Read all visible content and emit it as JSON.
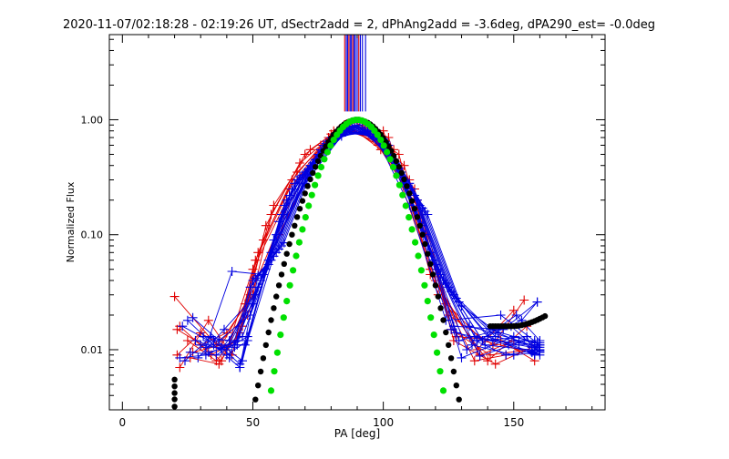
{
  "chart_data": {
    "type": "line",
    "title": "2020-11-07/02:18:28 - 02:19:26 UT, dSectr2add = 2, dPhAng2add = -3.6deg, dPA290_est= -0.0deg",
    "xlabel": "PA [deg]",
    "ylabel": "Normalized Flux",
    "xlim": [
      -5,
      185
    ],
    "ylim": [
      0.003,
      5.5
    ],
    "yscale": "log",
    "xticks": [
      0,
      50,
      100,
      150
    ],
    "xtick_labels": [
      "0",
      "50",
      "100",
      "150"
    ],
    "yticks": [
      0.01,
      0.1,
      1.0
    ],
    "ytick_labels": [
      "0.01",
      "0.10",
      "1.00"
    ],
    "colors": {
      "red": "#e00000",
      "blue": "#0000e0",
      "black": "#000000",
      "green": "#00e000"
    },
    "vertical_markers": {
      "color_sequence": [
        "red",
        "blue",
        "blue",
        "red",
        "blue",
        "blue",
        "red",
        "blue",
        "blue",
        "blue",
        "red",
        "blue",
        "blue",
        "blue"
      ],
      "x": [
        85.2,
        85.8,
        86.3,
        86.8,
        87.3,
        87.8,
        88.3,
        88.8,
        89.3,
        90.0,
        90.6,
        91.2,
        92.0,
        93.2
      ],
      "y_from": 1.18
    },
    "series": [
      {
        "name": "red-1",
        "color": "red",
        "x": [
          20,
          36,
          48,
          60,
          75,
          88,
          100,
          118,
          135,
          147
        ],
        "y": [
          0.029,
          0.011,
          0.02,
          0.1,
          0.5,
          0.88,
          0.8,
          0.05,
          0.008,
          0.009
        ]
      },
      {
        "name": "red-2",
        "color": "red",
        "x": [
          21,
          28,
          38,
          49,
          62,
          76,
          89,
          102,
          120,
          137,
          150
        ],
        "y": [
          0.015,
          0.012,
          0.008,
          0.03,
          0.15,
          0.6,
          0.95,
          0.7,
          0.04,
          0.009,
          0.012
        ]
      },
      {
        "name": "red-3",
        "color": "red",
        "x": [
          21,
          30,
          40,
          50,
          63,
          79,
          91,
          104,
          121,
          138,
          152
        ],
        "y": [
          0.009,
          0.014,
          0.01,
          0.05,
          0.2,
          0.7,
          0.9,
          0.55,
          0.03,
          0.012,
          0.01
        ]
      },
      {
        "name": "red-4",
        "color": "red",
        "x": [
          22,
          33,
          42,
          51,
          64,
          80,
          92,
          106,
          118,
          136,
          150
        ],
        "y": [
          0.007,
          0.018,
          0.009,
          0.06,
          0.25,
          0.75,
          0.85,
          0.5,
          0.045,
          0.01,
          0.022
        ]
      },
      {
        "name": "red-5",
        "color": "red",
        "x": [
          22,
          34,
          44,
          52,
          65,
          81,
          94,
          108,
          124,
          140,
          155
        ],
        "y": [
          0.016,
          0.009,
          0.012,
          0.07,
          0.3,
          0.8,
          0.78,
          0.4,
          0.025,
          0.008,
          0.016
        ]
      },
      {
        "name": "red-6",
        "color": "red",
        "x": [
          25,
          36,
          45,
          54,
          67,
          83,
          96,
          110,
          125,
          142,
          154
        ],
        "y": [
          0.012,
          0.008,
          0.014,
          0.09,
          0.35,
          0.82,
          0.7,
          0.3,
          0.02,
          0.011,
          0.027
        ]
      },
      {
        "name": "red-7",
        "color": "red",
        "x": [
          26,
          37,
          46,
          55,
          68,
          84,
          97,
          112,
          126,
          141,
          156
        ],
        "y": [
          0.0085,
          0.0075,
          0.016,
          0.12,
          0.42,
          0.85,
          0.65,
          0.25,
          0.015,
          0.009,
          0.01
        ]
      },
      {
        "name": "red-8",
        "color": "red",
        "x": [
          27,
          38,
          47,
          57,
          70,
          85,
          98,
          113,
          127,
          143,
          157
        ],
        "y": [
          0.0095,
          0.011,
          0.025,
          0.15,
          0.5,
          0.9,
          0.6,
          0.2,
          0.012,
          0.0075,
          0.0105
        ]
      },
      {
        "name": "red-9",
        "color": "red",
        "x": [
          30,
          40,
          50,
          58,
          72,
          86,
          99,
          115,
          128,
          145,
          158
        ],
        "y": [
          0.011,
          0.014,
          0.03,
          0.18,
          0.55,
          0.92,
          0.55,
          0.15,
          0.013,
          0.012,
          0.008
        ]
      },
      {
        "name": "blue-1",
        "color": "blue",
        "x": [
          22,
          32,
          44,
          56,
          70,
          84,
          96,
          110,
          124,
          145,
          160
        ],
        "y": [
          0.0085,
          0.009,
          0.012,
          0.06,
          0.28,
          0.72,
          0.8,
          0.18,
          0.018,
          0.02,
          0.011
        ]
      },
      {
        "name": "blue-2",
        "color": "blue",
        "x": [
          23,
          33,
          45,
          57,
          71,
          85,
          98,
          112,
          126,
          147,
          160
        ],
        "y": [
          0.016,
          0.012,
          0.007,
          0.07,
          0.32,
          0.78,
          0.75,
          0.16,
          0.015,
          0.009,
          0.01
        ]
      },
      {
        "name": "blue-3",
        "color": "blue",
        "x": [
          24,
          34,
          46,
          58,
          72,
          86,
          99,
          114,
          127,
          146,
          159
        ],
        "y": [
          0.008,
          0.013,
          0.008,
          0.09,
          0.35,
          0.8,
          0.7,
          0.14,
          0.016,
          0.015,
          0.026
        ]
      },
      {
        "name": "blue-4",
        "color": "blue",
        "x": [
          25,
          35,
          47,
          59,
          73,
          87,
          100,
          115,
          128,
          148,
          158
        ],
        "y": [
          0.018,
          0.011,
          0.011,
          0.1,
          0.4,
          0.82,
          0.68,
          0.12,
          0.014,
          0.011,
          0.009
        ]
      },
      {
        "name": "blue-5",
        "color": "blue",
        "x": [
          26,
          36,
          48,
          60,
          74,
          88,
          101,
          116,
          129,
          149,
          160
        ],
        "y": [
          0.0095,
          0.009,
          0.013,
          0.13,
          0.45,
          0.85,
          0.62,
          0.1,
          0.012,
          0.016,
          0.0095
        ]
      },
      {
        "name": "blue-6",
        "color": "blue",
        "x": [
          27,
          37,
          49,
          61,
          75,
          89,
          103,
          117,
          130,
          150,
          159
        ],
        "y": [
          0.019,
          0.012,
          0.02,
          0.15,
          0.5,
          0.88,
          0.5,
          0.08,
          0.0085,
          0.013,
          0.0115
        ]
      },
      {
        "name": "blue-7",
        "color": "blue",
        "x": [
          28,
          38,
          50,
          62,
          76,
          90,
          104,
          118,
          132,
          151,
          160
        ],
        "y": [
          0.012,
          0.01,
          0.025,
          0.18,
          0.55,
          0.9,
          0.45,
          0.07,
          0.01,
          0.02,
          0.012
        ]
      },
      {
        "name": "blue-8",
        "color": "blue",
        "x": [
          29,
          39,
          51,
          63,
          77,
          91,
          105,
          119,
          133,
          152,
          159
        ],
        "y": [
          0.0085,
          0.015,
          0.03,
          0.2,
          0.6,
          0.86,
          0.42,
          0.06,
          0.016,
          0.012,
          0.0105
        ]
      },
      {
        "name": "blue-9",
        "color": "blue",
        "x": [
          30,
          40,
          52,
          64,
          78,
          92,
          106,
          120,
          134,
          150,
          160
        ],
        "y": [
          0.011,
          0.01,
          0.035,
          0.22,
          0.62,
          0.84,
          0.38,
          0.055,
          0.011,
          0.009,
          0.0095
        ]
      },
      {
        "name": "blue-10",
        "color": "blue",
        "x": [
          31,
          41,
          53,
          65,
          79,
          93,
          107,
          121,
          135,
          152,
          157
        ],
        "y": [
          0.013,
          0.012,
          0.04,
          0.25,
          0.65,
          0.82,
          0.35,
          0.05,
          0.013,
          0.011,
          0.0105
        ]
      },
      {
        "name": "blue-11",
        "color": "blue",
        "x": [
          32,
          42,
          54,
          66,
          80,
          94,
          108,
          122,
          136,
          153,
          159
        ],
        "y": [
          0.0105,
          0.048,
          0.045,
          0.28,
          0.7,
          0.8,
          0.3,
          0.045,
          0.012,
          0.018,
          0.026
        ]
      },
      {
        "name": "blue-12",
        "color": "blue",
        "x": [
          33,
          43,
          55,
          67,
          81,
          95,
          110,
          123,
          137,
          154,
          160
        ],
        "y": [
          0.0095,
          0.011,
          0.05,
          0.3,
          0.72,
          0.78,
          0.28,
          0.04,
          0.0088,
          0.012,
          0.0115
        ]
      },
      {
        "name": "blue-13",
        "color": "blue",
        "x": [
          35,
          45,
          56,
          68,
          82,
          96,
          111,
          124,
          138,
          155,
          158
        ],
        "y": [
          0.012,
          0.0075,
          0.055,
          0.32,
          0.75,
          0.75,
          0.25,
          0.038,
          0.012,
          0.013,
          0.0092
        ]
      },
      {
        "name": "blue-14",
        "color": "blue",
        "x": [
          38,
          46,
          57,
          69,
          83,
          97,
          112,
          125,
          139,
          156,
          160
        ],
        "y": [
          0.0105,
          0.013,
          0.06,
          0.33,
          0.78,
          0.72,
          0.22,
          0.035,
          0.011,
          0.01,
          0.009
        ]
      },
      {
        "name": "blue-15",
        "color": "blue",
        "x": [
          40,
          48,
          58,
          70,
          84,
          98,
          113,
          126,
          140,
          157,
          159
        ],
        "y": [
          0.009,
          0.012,
          0.065,
          0.35,
          0.8,
          0.7,
          0.2,
          0.032,
          0.013,
          0.0095,
          0.0105
        ]
      },
      {
        "name": "blue-16",
        "color": "blue",
        "x": [
          41,
          49,
          59,
          71,
          85,
          99,
          114,
          127,
          141,
          158,
          160
        ],
        "y": [
          0.0085,
          0.035,
          0.07,
          0.37,
          0.82,
          0.68,
          0.18,
          0.03,
          0.015,
          0.0115,
          0.011
        ]
      },
      {
        "name": "blue-17",
        "color": "blue",
        "x": [
          43,
          50,
          60,
          72,
          86,
          100,
          115,
          128,
          142,
          159,
          157
        ],
        "y": [
          0.0105,
          0.04,
          0.075,
          0.4,
          0.84,
          0.66,
          0.17,
          0.028,
          0.012,
          0.011,
          0.0095
        ]
      },
      {
        "name": "blue-18",
        "color": "blue",
        "x": [
          44,
          51,
          61,
          73,
          87,
          101,
          116,
          129,
          143,
          160,
          158
        ],
        "y": [
          0.011,
          0.042,
          0.08,
          0.42,
          0.86,
          0.64,
          0.16,
          0.026,
          0.013,
          0.0105,
          0.012
        ]
      },
      {
        "name": "blue-19",
        "color": "blue",
        "x": [
          45,
          52,
          62,
          74,
          88,
          102,
          117,
          130,
          144,
          160,
          159
        ],
        "y": [
          0.007,
          0.044,
          0.085,
          0.45,
          0.88,
          0.6,
          0.15,
          0.024,
          0.014,
          0.0098,
          0.011
        ]
      }
    ],
    "model_curves": [
      {
        "name": "black",
        "color": "black",
        "kind": "gaussian-log-parabola",
        "x_start": 20,
        "x_end": 162,
        "x_step": 1,
        "center": 90,
        "width": 25,
        "tail_floor": 0.016,
        "tail_start": 140,
        "left_clip": 20,
        "left_y": [
          0.0055,
          0.0048,
          0.0042,
          0.0037,
          0.0032
        ]
      },
      {
        "name": "green",
        "color": "green",
        "kind": "gaussian-log-parabola",
        "x_start": 45,
        "x_end": 157,
        "x_step": 1.2,
        "center": 90,
        "width": 21.5
      }
    ]
  }
}
